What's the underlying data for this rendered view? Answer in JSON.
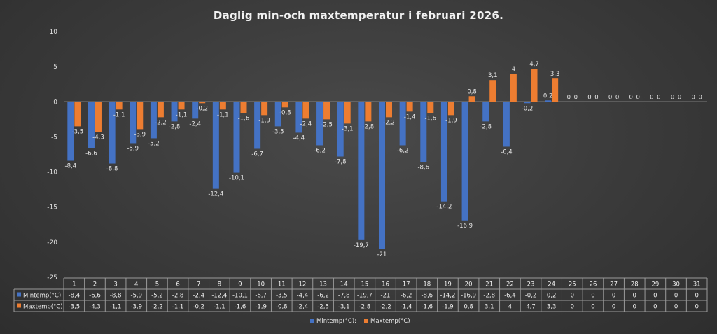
{
  "chart_data": {
    "type": "bar",
    "title": "Daglig min-och maxtemperatur i februari 2026.",
    "categories": [
      "1",
      "2",
      "3",
      "4",
      "5",
      "6",
      "7",
      "8",
      "9",
      "10",
      "11",
      "12",
      "13",
      "14",
      "15",
      "16",
      "17",
      "18",
      "19",
      "20",
      "21",
      "22",
      "23",
      "24",
      "25",
      "26",
      "27",
      "28",
      "29",
      "30",
      "31"
    ],
    "series": [
      {
        "name": "Mintemp(°C):",
        "color": "#4472C4",
        "values": [
          -8.4,
          -6.6,
          -8.8,
          -5.9,
          -5.2,
          -2.8,
          -2.4,
          -12.4,
          -10.1,
          -6.7,
          -3.5,
          -4.4,
          -6.2,
          -7.8,
          -19.7,
          -21,
          -6.2,
          -8.6,
          -14.2,
          -16.9,
          -2.8,
          -6.4,
          -0.2,
          0.2,
          0,
          0,
          0,
          0,
          0,
          0,
          0
        ],
        "labels": [
          "-8,4",
          "-6,6",
          "-8,8",
          "-5,9",
          "-5,2",
          "-2,8",
          "-2,4",
          "-12,4",
          "-10,1",
          "-6,7",
          "-3,5",
          "-4,4",
          "-6,2",
          "-7,8",
          "-19,7",
          "-21",
          "-6,2",
          "-8,6",
          "-14,2",
          "-16,9",
          "-2,8",
          "-6,4",
          "-0,2",
          "0,2",
          "0",
          "0",
          "0",
          "0",
          "0",
          "0",
          "0"
        ]
      },
      {
        "name": "Maxtemp(°C)",
        "color": "#ED7D31",
        "values": [
          -3.5,
          -4.3,
          -1.1,
          -3.9,
          -2.2,
          -1.1,
          -0.2,
          -1.1,
          -1.6,
          -1.9,
          -0.8,
          -2.4,
          -2.5,
          -3.1,
          -2.8,
          -2.2,
          -1.4,
          -1.6,
          -1.9,
          0.8,
          3.1,
          4,
          4.7,
          3.3,
          0,
          0,
          0,
          0,
          0,
          0,
          0
        ],
        "labels": [
          "-3,5",
          "-4,3",
          "-1,1",
          "-3,9",
          "-2,2",
          "-1,1",
          "-0,2",
          "-1,1",
          "-1,6",
          "-1,9",
          "-0,8",
          "-2,4",
          "-2,5",
          "-3,1",
          "-2,8",
          "-2,2",
          "-1,4",
          "-1,6",
          "-1,9",
          "0,8",
          "3,1",
          "4",
          "4,7",
          "3,3",
          "0",
          "0",
          "0",
          "0",
          "0",
          "0",
          "0"
        ]
      }
    ],
    "ylim": [
      -25,
      10
    ],
    "yticks": [
      10,
      5,
      0,
      -5,
      -10,
      -15,
      -20,
      -25
    ],
    "legend_position": "bottom",
    "data_table": true,
    "grid": false
  }
}
